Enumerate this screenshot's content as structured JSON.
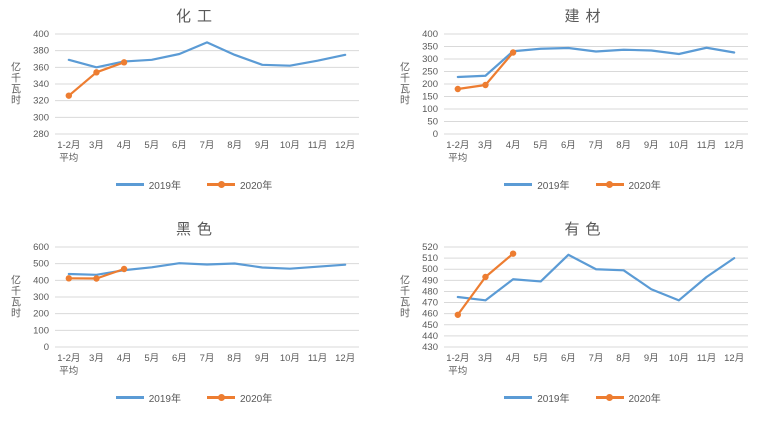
{
  "colors": {
    "series_2019": "#5B9BD5",
    "series_2020": "#ED7D31",
    "gridline": "#D9D9D9",
    "text": "#595959"
  },
  "chart_data": [
    {
      "type": "line",
      "title": "化工",
      "ylabel": "亿千瓦时",
      "categories": [
        "1-2月\n平均",
        "3月",
        "4月",
        "5月",
        "6月",
        "7月",
        "8月",
        "9月",
        "10月",
        "11月",
        "12月"
      ],
      "ylim": [
        280,
        400
      ],
      "ystep": 20,
      "grid": true,
      "legend_position": "bottom",
      "series": [
        {
          "name": "2019年",
          "color": "#5B9BD5",
          "marker": "none",
          "values": [
            369,
            360,
            367,
            369,
            376,
            390,
            375,
            363,
            362,
            368,
            375
          ]
        },
        {
          "name": "2020年",
          "color": "#ED7D31",
          "marker": "circle",
          "values": [
            326,
            354,
            366,
            null,
            null,
            null,
            null,
            null,
            null,
            null,
            null
          ]
        }
      ]
    },
    {
      "type": "line",
      "title": "建材",
      "ylabel": "亿千瓦时",
      "categories": [
        "1-2月\n平均",
        "3月",
        "4月",
        "5月",
        "6月",
        "7月",
        "8月",
        "9月",
        "10月",
        "11月",
        "12月"
      ],
      "ylim": [
        0,
        400
      ],
      "ystep": 50,
      "grid": true,
      "legend_position": "bottom",
      "series": [
        {
          "name": "2019年",
          "color": "#5B9BD5",
          "marker": "none",
          "values": [
            228,
            233,
            331,
            341,
            344,
            330,
            337,
            334,
            320,
            345,
            326
          ]
        },
        {
          "name": "2020年",
          "color": "#ED7D31",
          "marker": "circle",
          "values": [
            180,
            196,
            326,
            null,
            null,
            null,
            null,
            null,
            null,
            null,
            null
          ]
        }
      ]
    },
    {
      "type": "line",
      "title": "黑色",
      "ylabel": "亿千瓦时",
      "categories": [
        "1-2月\n平均",
        "3月",
        "4月",
        "5月",
        "6月",
        "7月",
        "8月",
        "9月",
        "10月",
        "11月",
        "12月"
      ],
      "ylim": [
        0,
        600
      ],
      "ystep": 100,
      "grid": true,
      "legend_position": "bottom",
      "series": [
        {
          "name": "2019年",
          "color": "#5B9BD5",
          "marker": "none",
          "values": [
            438,
            433,
            461,
            478,
            503,
            495,
            501,
            477,
            470,
            482,
            494
          ]
        },
        {
          "name": "2020年",
          "color": "#ED7D31",
          "marker": "circle",
          "values": [
            412,
            411,
            468,
            null,
            null,
            null,
            null,
            null,
            null,
            null,
            null
          ]
        }
      ]
    },
    {
      "type": "line",
      "title": "有色",
      "ylabel": "亿千瓦时",
      "categories": [
        "1-2月\n平均",
        "3月",
        "4月",
        "5月",
        "6月",
        "7月",
        "8月",
        "9月",
        "10月",
        "11月",
        "12月"
      ],
      "ylim": [
        430,
        520
      ],
      "ystep": 10,
      "grid": true,
      "legend_position": "bottom",
      "series": [
        {
          "name": "2019年",
          "color": "#5B9BD5",
          "marker": "none",
          "values": [
            475,
            472,
            491,
            489,
            513,
            500,
            499,
            482,
            472,
            493,
            510
          ]
        },
        {
          "name": "2020年",
          "color": "#ED7D31",
          "marker": "circle",
          "values": [
            459,
            493,
            514,
            null,
            null,
            null,
            null,
            null,
            null,
            null,
            null
          ]
        }
      ]
    }
  ]
}
